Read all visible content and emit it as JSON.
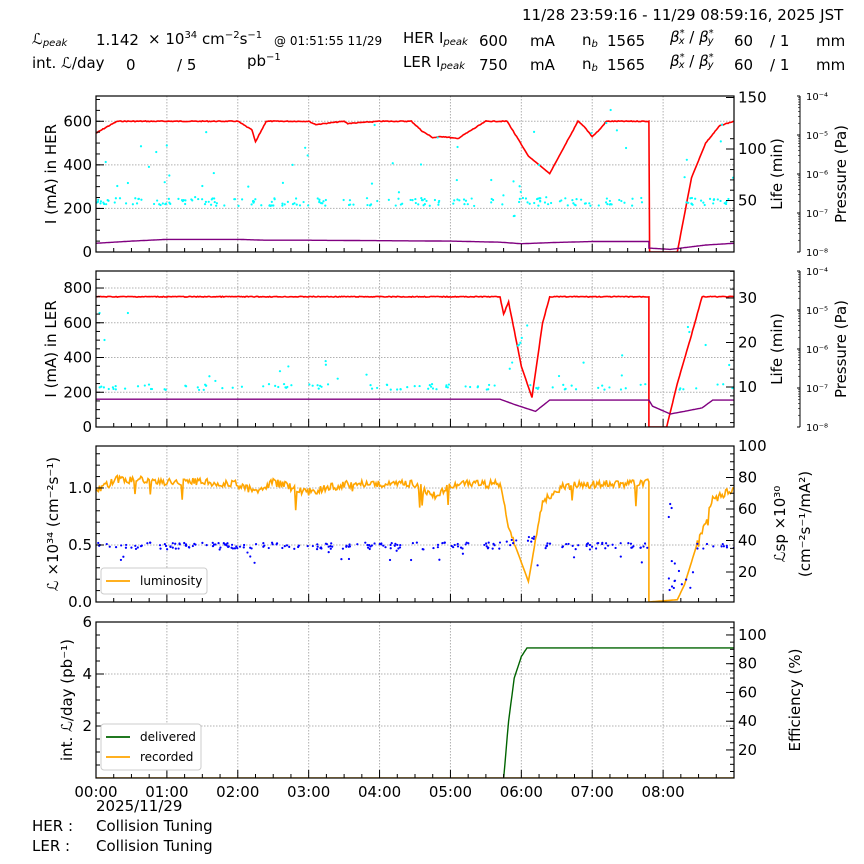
{
  "header": {
    "time_range": "11/28 23:59:16 - 11/29 08:59:16, 2025 JST",
    "lpeak_label": "ℒ",
    "lpeak_sub": "peak",
    "lpeak_value": "1.142",
    "lpeak_unit_prefix": "× 10",
    "lpeak_exp": "34",
    "lpeak_unit": " cm",
    "lpeak_unit_exp1": "−2",
    "lpeak_unit_s": "s",
    "lpeak_unit_exp2": "−1",
    "lpeak_at": "@ 01:51:55 11/29",
    "intl_label": "int. ℒ/day",
    "intl_value": "0",
    "intl_slash": "/ 5",
    "intl_unit": "pb",
    "intl_unit_exp": "−1",
    "her": {
      "label": "HER I",
      "sub": "peak",
      "value": "600",
      "unit": "mA",
      "nb_label": "n",
      "nb_sub": "b",
      "nb": "1565",
      "beta_label": "β*x / β*y",
      "beta_x": "60",
      "beta_y": "/ 1",
      "beta_unit": "mm"
    },
    "ler": {
      "label": "LER I",
      "sub": "peak",
      "value": "750",
      "unit": "mA",
      "nb_label": "n",
      "nb_sub": "b",
      "nb": "1565",
      "beta_label": "β*x / β*y",
      "beta_x": "60",
      "beta_y": "/ 1",
      "beta_unit": "mm"
    }
  },
  "footer": {
    "date": "2025/11/29",
    "her_label": "HER :",
    "her_status": "Collision Tuning",
    "ler_label": "LER :",
    "ler_status": "Collision Tuning"
  },
  "colors": {
    "current": "#ff0000",
    "life": "#00ffff",
    "pressure": "#800080",
    "luminosity": "#ffa500",
    "specific": "#0000ff",
    "delivered": "#006400",
    "recorded": "#ffa500",
    "grid": "#b0b0b0"
  },
  "chart_data": [
    {
      "type": "line",
      "title": "HER",
      "xlabel": "",
      "x_ticks": [
        "00:00",
        "01:00",
        "02:00",
        "03:00",
        "04:00",
        "05:00",
        "06:00",
        "07:00",
        "08:00"
      ],
      "ylabel": "I (mA) in HER",
      "ylim": [
        0,
        716
      ],
      "yticks": [
        0,
        200,
        400,
        600
      ],
      "y2label": "Life (min)",
      "y2ticks": [
        50,
        100,
        150
      ],
      "y3label": "Pressure (Pa)",
      "y3ticks": [
        "10^-8",
        "10^-7",
        "10^-6",
        "10^-5",
        "10^-4"
      ],
      "series": [
        {
          "name": "current",
          "color": "#ff0000",
          "x": [
            0,
            0.13,
            0.3,
            1.0,
            2.0,
            2.2,
            2.25,
            2.4,
            2.6,
            3.0,
            3.1,
            3.5,
            3.55,
            4.0,
            4.45,
            4.6,
            4.75,
            4.9,
            5.1,
            5.5,
            5.6,
            5.8,
            6.1,
            6.4,
            6.8,
            6.9,
            7.0,
            7.1,
            7.2,
            7.8,
            7.8,
            7.81,
            8.2,
            8.4,
            8.6,
            8.8,
            9.0
          ],
          "y": [
            545,
            570,
            600,
            600,
            600,
            560,
            505,
            600,
            600,
            600,
            585,
            600,
            590,
            600,
            600,
            555,
            525,
            530,
            520,
            600,
            600,
            600,
            440,
            360,
            600,
            570,
            530,
            560,
            600,
            600,
            600,
            0,
            0,
            340,
            500,
            580,
            600
          ]
        },
        {
          "name": "life",
          "color": "#00ffff",
          "kind": "scatter",
          "note": "scattered around ~50 min with excursions"
        },
        {
          "name": "pressure",
          "color": "#800080",
          "x": [
            0,
            0.5,
            1.0,
            2.0,
            2.4,
            3.0,
            4.0,
            5.0,
            5.7,
            6.0,
            6.5,
            7.0,
            7.8,
            7.8,
            8.1,
            8.3,
            8.6,
            9.0
          ],
          "y": [
            40,
            50,
            58,
            58,
            54,
            54,
            52,
            50,
            45,
            38,
            44,
            48,
            48,
            18,
            12,
            20,
            32,
            40
          ]
        }
      ]
    },
    {
      "type": "line",
      "title": "LER",
      "ylabel": "I (mA) in LER",
      "ylim": [
        0,
        898
      ],
      "yticks": [
        0,
        200,
        400,
        600,
        800
      ],
      "y2label": "Life (min)",
      "y2ticks": [
        10,
        20,
        30
      ],
      "y3label": "Pressure (Pa)",
      "y3ticks": [
        "10^-8",
        "10^-7",
        "10^-6",
        "10^-5",
        "10^-4"
      ],
      "series": [
        {
          "name": "current",
          "color": "#ff0000",
          "x": [
            0,
            5.7,
            5.75,
            5.82,
            6.0,
            6.15,
            6.3,
            6.4,
            7.8,
            7.8,
            8.05,
            8.2,
            8.4,
            8.55,
            9.0
          ],
          "y": [
            750,
            750,
            650,
            720,
            350,
            170,
            600,
            750,
            750,
            0,
            0,
            250,
            530,
            750,
            750
          ]
        },
        {
          "name": "life",
          "color": "#00ffff",
          "kind": "scatter",
          "note": "mostly ~200 with ramp 5.8–6.1h up to ~600"
        },
        {
          "name": "pressure",
          "color": "#800080",
          "x": [
            0,
            5.7,
            5.9,
            6.2,
            6.4,
            7.8,
            7.85,
            8.1,
            8.3,
            8.55,
            8.7,
            9.0
          ],
          "y": [
            160,
            160,
            130,
            90,
            155,
            155,
            120,
            75,
            90,
            110,
            155,
            155
          ]
        }
      ]
    },
    {
      "type": "line",
      "title": "Luminosity",
      "ylabel": "ℒ ×10^34 (cm^-2 s^-1)",
      "ylim": [
        0,
        1.368
      ],
      "yticks": [
        0.0,
        0.5,
        1.0
      ],
      "y2label": "ℒsp ×10^30 (cm^-2 s^-1 / mA^2)",
      "y2ticks": [
        20,
        40,
        60,
        80,
        100
      ],
      "legend": [
        "luminosity"
      ],
      "series": [
        {
          "name": "luminosity",
          "color": "#ffa500",
          "x": [
            0,
            0.3,
            0.5,
            1.0,
            1.5,
            2.0,
            2.3,
            2.5,
            3.0,
            3.5,
            4.0,
            4.5,
            4.8,
            5.0,
            5.5,
            5.7,
            5.85,
            6.1,
            6.3,
            6.6,
            7.0,
            7.5,
            7.8,
            7.8,
            8.2,
            8.3,
            8.5,
            8.7,
            9.0
          ],
          "y": [
            0.98,
            1.08,
            1.08,
            1.06,
            1.06,
            1.04,
            0.96,
            1.06,
            0.97,
            1.04,
            1.04,
            1.04,
            0.94,
            1.04,
            1.04,
            1.04,
            0.6,
            0.18,
            0.9,
            1.02,
            1.04,
            1.04,
            1.05,
            0,
            0.02,
            0.15,
            0.55,
            0.9,
            1.0
          ]
        },
        {
          "name": "specific_luminosity",
          "color": "#0000ff",
          "kind": "scatter",
          "note": "~0.5 band (≈35 on right axis), dip to ~0.15–0.35 near 08:05–08:20"
        }
      ]
    },
    {
      "type": "line",
      "title": "Integrated luminosity",
      "ylabel": "int. ℒ/day (pb^-1)",
      "ylim": [
        0,
        6
      ],
      "yticks": [
        2,
        4,
        6
      ],
      "y2label": "Efficiency (%)",
      "y2ticks": [
        20,
        40,
        60,
        80,
        100
      ],
      "legend": [
        "delivered",
        "recorded"
      ],
      "series": [
        {
          "name": "delivered",
          "color": "#006400",
          "axis": "right",
          "x": [
            0,
            5.75,
            5.82,
            5.9,
            6.0,
            6.08,
            9.0
          ],
          "y": [
            0,
            0,
            40,
            70,
            85,
            91,
            91
          ]
        },
        {
          "name": "recorded",
          "color": "#ffa500",
          "x": [
            0,
            9.0
          ],
          "y": [
            0,
            0
          ]
        }
      ]
    }
  ]
}
